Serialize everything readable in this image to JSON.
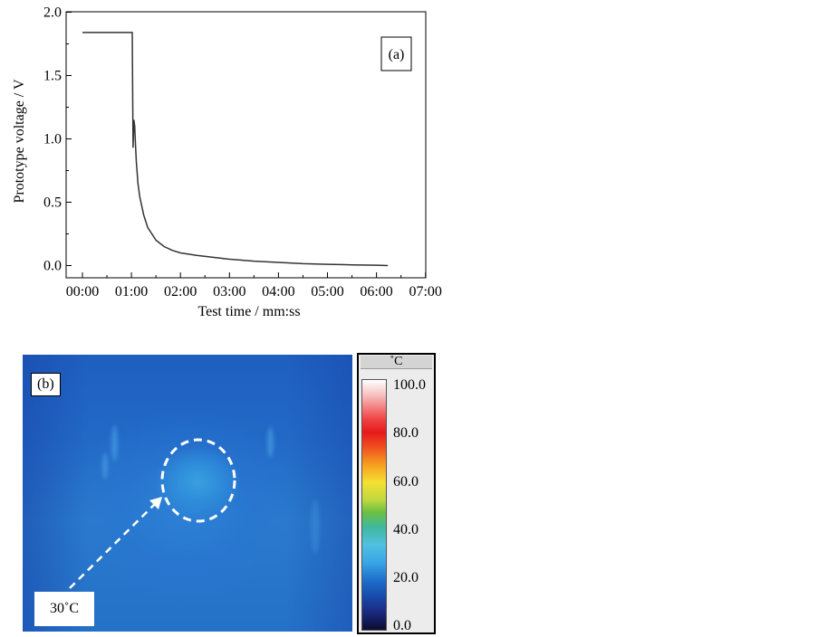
{
  "chart_data": [
    {
      "type": "line",
      "panel_label": "(a)",
      "xlabel": "Test time / mm:ss",
      "ylabel": "Prototype voltage / V",
      "xlim": [
        0,
        420
      ],
      "ylim": [
        0.0,
        2.0
      ],
      "x_ticks": [
        "00:00",
        "01:00",
        "02:00",
        "03:00",
        "04:00",
        "05:00",
        "06:00",
        "07:00"
      ],
      "y_ticks": [
        "0.0",
        "0.5",
        "1.0",
        "1.5",
        "2.0"
      ],
      "grid": false,
      "series": [
        {
          "color": "#333333",
          "x_seconds": [
            0,
            30,
            60,
            61,
            61.5,
            62,
            63,
            64,
            65,
            66,
            68,
            70,
            75,
            80,
            90,
            100,
            110,
            120,
            140,
            160,
            180,
            210,
            240,
            270,
            300,
            330,
            360,
            374
          ],
          "y": [
            1.84,
            1.84,
            1.84,
            1.84,
            1.3,
            0.93,
            1.15,
            1.1,
            0.95,
            0.82,
            0.65,
            0.55,
            0.4,
            0.3,
            0.2,
            0.15,
            0.12,
            0.1,
            0.08,
            0.065,
            0.05,
            0.035,
            0.025,
            0.015,
            0.01,
            0.006,
            0.003,
            0.0
          ]
        }
      ]
    },
    {
      "type": "heatmap",
      "panel_label": "(b)",
      "annotation": "30˚C",
      "colorbar": {
        "unit": "˚C",
        "labels": [
          "100.0",
          "80.0",
          "60.0",
          "40.0",
          "20.0",
          "0.0"
        ],
        "range": [
          0.0,
          100.0
        ]
      }
    }
  ]
}
